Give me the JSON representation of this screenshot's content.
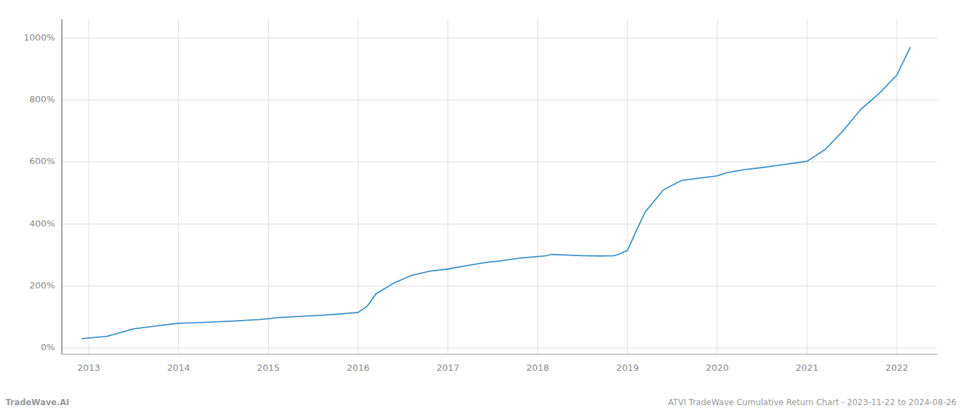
{
  "chart_data": {
    "type": "line",
    "x": [
      2012.92,
      2013.0,
      2013.2,
      2013.5,
      2013.8,
      2014.0,
      2014.3,
      2014.6,
      2014.9,
      2015.0,
      2015.1,
      2015.4,
      2015.6,
      2015.8,
      2016.0,
      2016.1,
      2016.2,
      2016.4,
      2016.6,
      2016.8,
      2017.0,
      2017.2,
      2017.4,
      2017.6,
      2017.8,
      2018.0,
      2018.1,
      2018.15,
      2018.3,
      2018.5,
      2018.7,
      2018.85,
      2018.9,
      2019.0,
      2019.1,
      2019.2,
      2019.4,
      2019.6,
      2019.8,
      2020.0,
      2020.1,
      2020.3,
      2020.5,
      2020.7,
      2020.9,
      2021.0,
      2021.2,
      2021.4,
      2021.6,
      2021.8,
      2022.0,
      2022.15
    ],
    "values": [
      30,
      33,
      38,
      62,
      73,
      80,
      83,
      87,
      92,
      95,
      98,
      103,
      106,
      110,
      115,
      135,
      175,
      210,
      235,
      248,
      255,
      265,
      275,
      282,
      290,
      295,
      298,
      302,
      300,
      298,
      297,
      298,
      302,
      315,
      380,
      440,
      510,
      540,
      548,
      555,
      565,
      575,
      582,
      590,
      598,
      602,
      640,
      700,
      770,
      820,
      880,
      970
    ],
    "color": "#3a90c8",
    "xlim": [
      2012.7,
      2022.45
    ],
    "xticks": [
      2013,
      2014,
      2015,
      2016,
      2017,
      2018,
      2019,
      2020,
      2021,
      2022
    ],
    "ylim": [
      -20,
      1060
    ],
    "yticks": [
      {
        "value": 0,
        "label": "0%"
      },
      {
        "value": 200,
        "label": "200%"
      },
      {
        "value": 400,
        "label": "400%"
      },
      {
        "value": 600,
        "label": "600%"
      },
      {
        "value": 800,
        "label": "800%"
      },
      {
        "value": 1000,
        "label": "1000%"
      }
    ],
    "grid": true,
    "annotations": [
      "TradeWave.AI",
      "ATVI TradeWave Cumulative Return Chart - 2023-11-22 to 2024-08-26"
    ]
  }
}
